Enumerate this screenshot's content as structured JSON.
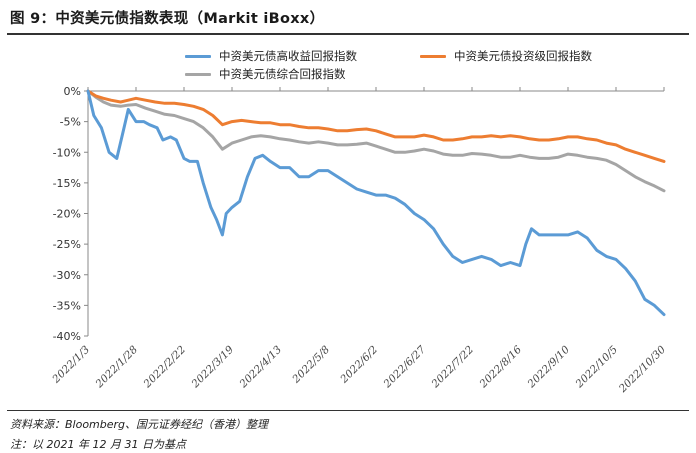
{
  "header": {
    "title": "图 9：中资美元债指数表现（Markit iBoxx）"
  },
  "footer": {
    "source": "资料来源：Bloomberg、国元证券经纪（香港）整理",
    "note": "注：以 2021 年 12 月 31 日为基点"
  },
  "chart_data": {
    "type": "line",
    "title": "",
    "xlabel": "",
    "ylabel": "",
    "ylim": [
      -40,
      0
    ],
    "yticks": [
      "0%",
      "-5%",
      "-10%",
      "-15%",
      "-20%",
      "-25%",
      "-30%",
      "-35%",
      "-40%"
    ],
    "x_tick_labels": [
      "2022/1/3",
      "2022/1/28",
      "2022/2/22",
      "2022/3/19",
      "2022/4/13",
      "2022/5/8",
      "2022/6/2",
      "2022/6/27",
      "2022/7/22",
      "2022/8/16",
      "2022/9/10",
      "2022/10/5",
      "2022/10/30"
    ],
    "grid": false,
    "legend_position": "top",
    "series": [
      {
        "name": "中资美元债高收益回报指数",
        "color": "#5b9bd5",
        "x": [
          "2022/1/3",
          "2022/1/6",
          "2022/1/10",
          "2022/1/14",
          "2022/1/18",
          "2022/1/21",
          "2022/1/24",
          "2022/1/28",
          "2022/2/1",
          "2022/2/4",
          "2022/2/8",
          "2022/2/11",
          "2022/2/15",
          "2022/2/18",
          "2022/2/22",
          "2022/2/25",
          "2022/3/1",
          "2022/3/4",
          "2022/3/8",
          "2022/3/11",
          "2022/3/14",
          "2022/3/16",
          "2022/3/19",
          "2022/3/23",
          "2022/3/27",
          "2022/3/31",
          "2022/4/4",
          "2022/4/8",
          "2022/4/13",
          "2022/4/18",
          "2022/4/23",
          "2022/4/28",
          "2022/5/3",
          "2022/5/8",
          "2022/5/13",
          "2022/5/18",
          "2022/5/23",
          "2022/5/28",
          "2022/6/2",
          "2022/6/7",
          "2022/6/12",
          "2022/6/17",
          "2022/6/22",
          "2022/6/27",
          "2022/7/2",
          "2022/7/7",
          "2022/7/12",
          "2022/7/17",
          "2022/7/22",
          "2022/7/27",
          "2022/8/1",
          "2022/8/6",
          "2022/8/11",
          "2022/8/16",
          "2022/8/19",
          "2022/8/22",
          "2022/8/26",
          "2022/8/31",
          "2022/9/5",
          "2022/9/10",
          "2022/9/15",
          "2022/9/20",
          "2022/9/25",
          "2022/9/30",
          "2022/10/5",
          "2022/10/10",
          "2022/10/15",
          "2022/10/20",
          "2022/10/25",
          "2022/10/30"
        ],
        "values": [
          0,
          -4,
          -6,
          -10,
          -11,
          -7,
          -3,
          -5,
          -5,
          -5.5,
          -6,
          -8,
          -7.5,
          -8,
          -11,
          -11.5,
          -11.5,
          -15,
          -19,
          -21,
          -23.5,
          -20,
          -19,
          -18,
          -14,
          -11,
          -10.5,
          -11.5,
          -12.5,
          -12.5,
          -14,
          -14,
          -13,
          -13,
          -14,
          -15,
          -16,
          -16.5,
          -17,
          -17,
          -17.5,
          -18.5,
          -20,
          -21,
          -22.5,
          -25,
          -27,
          -28,
          -27.5,
          -27,
          -27.5,
          -28.5,
          -28,
          -28.5,
          -25,
          -22.5,
          -23.5,
          -23.5,
          -23.5,
          -23.5,
          -23,
          -24,
          -26,
          -27,
          -27.5,
          -29,
          -31,
          -34,
          -35,
          -36.5
        ]
      },
      {
        "name": "中资美元债投资级回报指数",
        "color": "#ed7d31",
        "x": [
          "2022/1/3",
          "2022/1/7",
          "2022/1/11",
          "2022/1/15",
          "2022/1/20",
          "2022/1/24",
          "2022/1/28",
          "2022/2/2",
          "2022/2/7",
          "2022/2/12",
          "2022/2/17",
          "2022/2/22",
          "2022/2/27",
          "2022/3/4",
          "2022/3/9",
          "2022/3/14",
          "2022/3/19",
          "2022/3/24",
          "2022/3/29",
          "2022/4/3",
          "2022/4/8",
          "2022/4/13",
          "2022/4/18",
          "2022/4/23",
          "2022/4/28",
          "2022/5/3",
          "2022/5/8",
          "2022/5/13",
          "2022/5/18",
          "2022/5/23",
          "2022/5/28",
          "2022/6/2",
          "2022/6/7",
          "2022/6/12",
          "2022/6/17",
          "2022/6/22",
          "2022/6/27",
          "2022/7/2",
          "2022/7/7",
          "2022/7/12",
          "2022/7/17",
          "2022/7/22",
          "2022/7/27",
          "2022/8/1",
          "2022/8/6",
          "2022/8/11",
          "2022/8/16",
          "2022/8/21",
          "2022/8/26",
          "2022/8/31",
          "2022/9/5",
          "2022/9/10",
          "2022/9/15",
          "2022/9/20",
          "2022/9/25",
          "2022/9/30",
          "2022/10/5",
          "2022/10/10",
          "2022/10/15",
          "2022/10/20",
          "2022/10/25",
          "2022/10/30"
        ],
        "values": [
          0,
          -0.8,
          -1.2,
          -1.5,
          -1.8,
          -1.5,
          -1.2,
          -1.5,
          -1.8,
          -2,
          -2,
          -2.2,
          -2.5,
          -3,
          -4,
          -5.5,
          -5,
          -4.8,
          -5,
          -5.2,
          -5.2,
          -5.5,
          -5.5,
          -5.8,
          -6,
          -6,
          -6.2,
          -6.5,
          -6.5,
          -6.3,
          -6.2,
          -6.5,
          -7,
          -7.5,
          -7.5,
          -7.5,
          -7.2,
          -7.5,
          -8,
          -8,
          -7.8,
          -7.5,
          -7.5,
          -7.3,
          -7.5,
          -7.3,
          -7.5,
          -7.8,
          -8,
          -8,
          -7.8,
          -7.5,
          -7.5,
          -7.8,
          -8,
          -8.5,
          -8.8,
          -9.5,
          -10,
          -10.5,
          -11,
          -11.5
        ]
      },
      {
        "name": "中资美元债综合回报指数",
        "color": "#a5a5a5",
        "x": [
          "2022/1/3",
          "2022/1/7",
          "2022/1/11",
          "2022/1/15",
          "2022/1/20",
          "2022/1/24",
          "2022/1/28",
          "2022/2/2",
          "2022/2/7",
          "2022/2/12",
          "2022/2/17",
          "2022/2/22",
          "2022/2/27",
          "2022/3/4",
          "2022/3/9",
          "2022/3/14",
          "2022/3/19",
          "2022/3/24",
          "2022/3/29",
          "2022/4/3",
          "2022/4/8",
          "2022/4/13",
          "2022/4/18",
          "2022/4/23",
          "2022/4/28",
          "2022/5/3",
          "2022/5/8",
          "2022/5/13",
          "2022/5/18",
          "2022/5/23",
          "2022/5/28",
          "2022/6/2",
          "2022/6/7",
          "2022/6/12",
          "2022/6/17",
          "2022/6/22",
          "2022/6/27",
          "2022/7/2",
          "2022/7/7",
          "2022/7/12",
          "2022/7/17",
          "2022/7/22",
          "2022/7/27",
          "2022/8/1",
          "2022/8/6",
          "2022/8/11",
          "2022/8/16",
          "2022/8/21",
          "2022/8/26",
          "2022/8/31",
          "2022/9/5",
          "2022/9/10",
          "2022/9/15",
          "2022/9/20",
          "2022/9/25",
          "2022/9/30",
          "2022/10/5",
          "2022/10/10",
          "2022/10/15",
          "2022/10/20",
          "2022/10/25",
          "2022/10/30"
        ],
        "values": [
          0,
          -1,
          -1.8,
          -2.3,
          -2.5,
          -2.3,
          -2.2,
          -2.8,
          -3.3,
          -3.8,
          -4,
          -4.5,
          -5,
          -6,
          -7.5,
          -9.5,
          -8.5,
          -8,
          -7.5,
          -7.3,
          -7.5,
          -7.8,
          -8,
          -8.3,
          -8.5,
          -8.3,
          -8.5,
          -8.8,
          -8.8,
          -8.7,
          -8.5,
          -9,
          -9.5,
          -10,
          -10,
          -9.8,
          -9.5,
          -9.8,
          -10.3,
          -10.5,
          -10.5,
          -10.2,
          -10.3,
          -10.5,
          -10.8,
          -10.8,
          -10.5,
          -10.8,
          -11,
          -11,
          -10.8,
          -10.3,
          -10.5,
          -10.8,
          -11,
          -11.3,
          -12,
          -13,
          -14,
          -14.8,
          -15.5,
          -16.3
        ]
      }
    ]
  }
}
